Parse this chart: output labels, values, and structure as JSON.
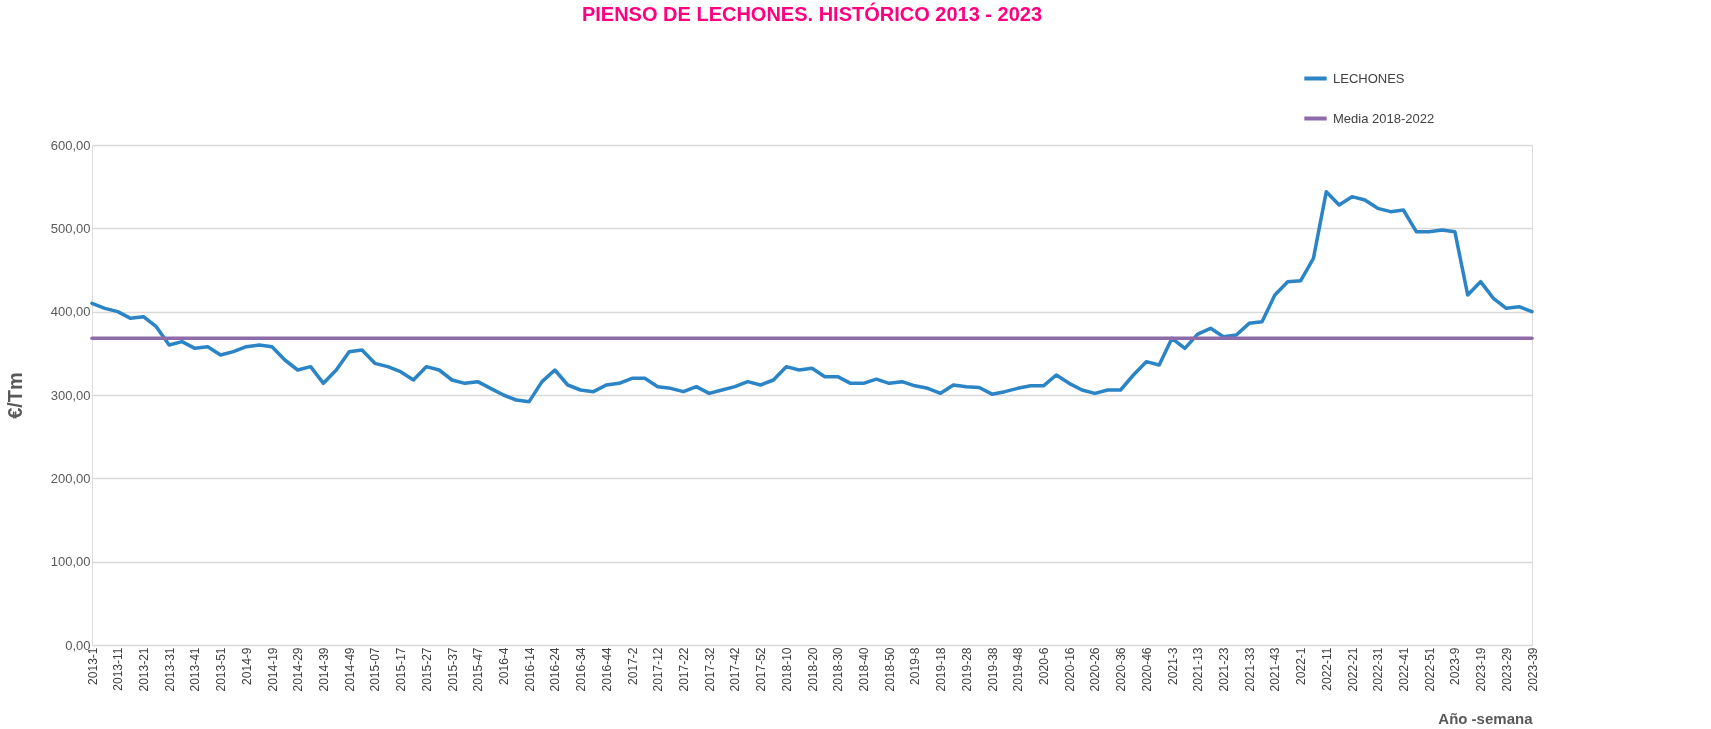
{
  "chart_data": {
    "type": "line",
    "title": "PIENSO DE LECHONES. HISTÓRICO 2013 - 2023",
    "xlabel": "Año -semana",
    "ylabel": "€/Tm",
    "categories": [
      "2013-1",
      null,
      "2013-11",
      null,
      "2013-21",
      null,
      "2013-31",
      null,
      "2013-41",
      null,
      "2013-51",
      null,
      "2014-9",
      null,
      "2014-19",
      null,
      "2014-29",
      null,
      "2014-39",
      null,
      "2014-49",
      null,
      "2015-07",
      null,
      "2015-17",
      null,
      "2015-27",
      null,
      "2015-37",
      null,
      "2015-47",
      null,
      "2016-4",
      null,
      "2016-14",
      null,
      "2016-24",
      null,
      "2016-34",
      null,
      "2016-44",
      null,
      "2017-2",
      null,
      "2017-12",
      null,
      "2017-22",
      null,
      "2017-32",
      null,
      "2017-42",
      null,
      "2017-52",
      null,
      "2018-10",
      null,
      "2018-20",
      null,
      "2018-30",
      null,
      "2018-40",
      null,
      "2018-50",
      null,
      "2019-8",
      null,
      "2019-18",
      null,
      "2019-28",
      null,
      "2019-38",
      null,
      "2019-48",
      null,
      "2020-6",
      null,
      "2020-16",
      null,
      "2020-26",
      null,
      "2020-36",
      null,
      "2020-46",
      null,
      "2021-3",
      null,
      "2021-13",
      null,
      "2021-23",
      null,
      "2021-33",
      null,
      "2021-43",
      null,
      "2022-1",
      null,
      "2022-11",
      null,
      "2022-21",
      null,
      "2022-31",
      null,
      "2022-41",
      null,
      "2022-51",
      null,
      "2023-9",
      null,
      "2023-19",
      null,
      "2023-29",
      null,
      "2023-39"
    ],
    "series": [
      {
        "name": "LECHONES",
        "color": "#2a84c6",
        "values": [
          410,
          404,
          400,
          392,
          394,
          382,
          360,
          364,
          356,
          358,
          348,
          352,
          358,
          360,
          358,
          342,
          330,
          334,
          314,
          330,
          352,
          354,
          338,
          334,
          328,
          318,
          334,
          330,
          318,
          314,
          316,
          308,
          300,
          294,
          292,
          316,
          330,
          312,
          306,
          304,
          312,
          314,
          320,
          320,
          310,
          308,
          304,
          310,
          302,
          306,
          310,
          316,
          312,
          318,
          334,
          330,
          332,
          322,
          322,
          314,
          314,
          319,
          314,
          316,
          311,
          308,
          302,
          312,
          310,
          309,
          301,
          304,
          308,
          311,
          311,
          324,
          314,
          306,
          302,
          306,
          306,
          324,
          340,
          336,
          368,
          356,
          373,
          380,
          370,
          372,
          386,
          388,
          420,
          436,
          437,
          464,
          544,
          528,
          538,
          534,
          524,
          520,
          522,
          496,
          496,
          498,
          496,
          420,
          436,
          416,
          404,
          406,
          400
        ]
      },
      {
        "name": "Media 2018-2022",
        "color": "#8e6aa8",
        "values": [
          368,
          368,
          368,
          368,
          368,
          368,
          368,
          368,
          368,
          368,
          368,
          368,
          368,
          368,
          368,
          368,
          368,
          368,
          368,
          368,
          368,
          368,
          368,
          368,
          368,
          368,
          368,
          368,
          368,
          368,
          368,
          368,
          368,
          368,
          368,
          368,
          368,
          368,
          368,
          368,
          368,
          368,
          368,
          368,
          368,
          368,
          368,
          368,
          368,
          368,
          368,
          368,
          368,
          368,
          368,
          368,
          368,
          368,
          368,
          368,
          368,
          368,
          368,
          368,
          368,
          368,
          368,
          368,
          368,
          368,
          368,
          368,
          368,
          368,
          368,
          368,
          368,
          368,
          368,
          368,
          368,
          368,
          368,
          368,
          368,
          368,
          368,
          368,
          368,
          368,
          368,
          368,
          368,
          368,
          368,
          368,
          368,
          368,
          368,
          368,
          368,
          368,
          368,
          368,
          368,
          368,
          368,
          368,
          368,
          368,
          368,
          368,
          368
        ]
      }
    ],
    "ylim": [
      0,
      600
    ],
    "yticks": [
      {
        "value": 0,
        "label": "0,00"
      },
      {
        "value": 100,
        "label": "100,00"
      },
      {
        "value": 200,
        "label": "200,00"
      },
      {
        "value": 300,
        "label": "300,00"
      },
      {
        "value": 400,
        "label": "400,00"
      },
      {
        "value": 500,
        "label": "500,00"
      },
      {
        "value": 600,
        "label": "600,00"
      }
    ],
    "grid": "y",
    "legend": "top right",
    "marker": "none",
    "line_style": "solid"
  }
}
